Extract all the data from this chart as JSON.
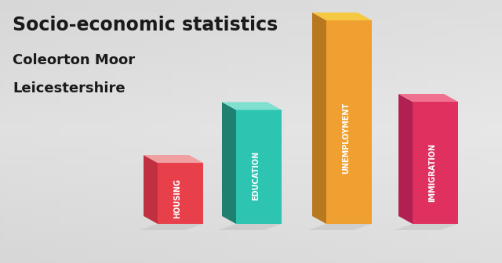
{
  "title_line1": "Socio-economic statistics",
  "title_line2": "Coleorton Moor",
  "title_line3": "Leicestershire",
  "categories": [
    "HOUSING",
    "EDUCATION",
    "UNEMPLOYMENT",
    "IMMIGRATION"
  ],
  "values": [
    0.3,
    0.56,
    1.0,
    0.6
  ],
  "bar_colors_front": [
    "#E8404A",
    "#2DC4B2",
    "#F0A030",
    "#E03060"
  ],
  "bar_colors_left": [
    "#C03040",
    "#208070",
    "#B87820",
    "#B02050"
  ],
  "bar_colors_top": [
    "#F0A0A0",
    "#80E0D0",
    "#F5C842",
    "#F07090"
  ],
  "shadow_color": "#CCCCCC",
  "background_color": "#E0E0E0",
  "title_color": "#1a1a1a",
  "label_color": "#FFFFFF"
}
